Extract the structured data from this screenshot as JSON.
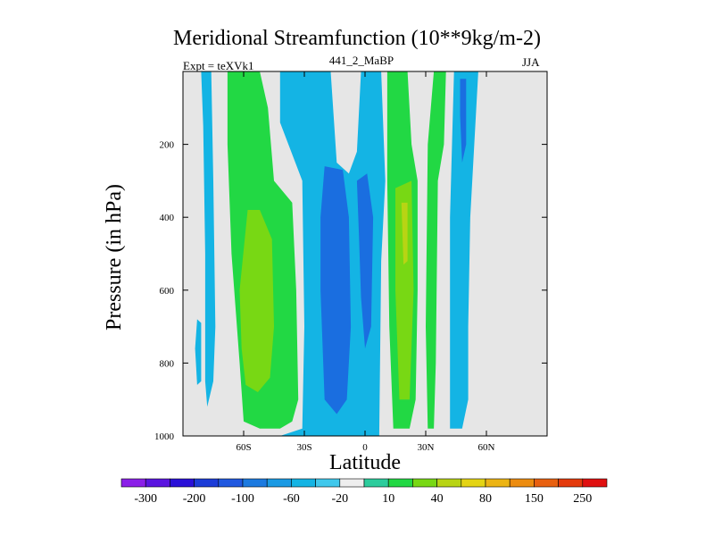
{
  "chart_data": {
    "type": "contourf",
    "title": "Meridional Streamfunction (10**9kg/m-2)",
    "left_label": "Expt = teXVk1",
    "center_label": "441_2_MaBP",
    "right_label": "JJA",
    "xlabel": "Latitude",
    "ylabel": "Pressure (in hPa)",
    "xlim": [
      -90,
      90
    ],
    "ylim": [
      1000,
      0
    ],
    "x_ticks": [
      {
        "value": -60,
        "label": "60S"
      },
      {
        "value": -30,
        "label": "30S"
      },
      {
        "value": 0,
        "label": "0"
      },
      {
        "value": 30,
        "label": "30N"
      },
      {
        "value": 60,
        "label": "60N"
      }
    ],
    "y_ticks": [
      {
        "value": 200,
        "label": "200"
      },
      {
        "value": 400,
        "label": "400"
      },
      {
        "value": 600,
        "label": "600"
      },
      {
        "value": 800,
        "label": "800"
      },
      {
        "value": 1000,
        "label": "1000"
      }
    ],
    "missing_color": "#e6e6e6",
    "colorbar": {
      "labels": [
        "-300",
        "-200",
        "-100",
        "-60",
        "-20",
        "10",
        "40",
        "80",
        "150",
        "250"
      ],
      "colors": [
        "#8b1fe8",
        "#5a14e0",
        "#2a10d8",
        "#1c3cd8",
        "#2058e0",
        "#1c7ae0",
        "#1a9ae4",
        "#14b4e4",
        "#40c8ec",
        "#eeeeee",
        "#2ccc9c",
        "#22d844",
        "#78d814",
        "#b8d414",
        "#e4d414",
        "#ecb414",
        "#ec8c10",
        "#e86010",
        "#e43a0c",
        "#e01010"
      ]
    },
    "regions": [
      {
        "level": "-20",
        "points": [
          [
            -81,
            0
          ],
          [
            -76,
            0
          ],
          [
            -75,
            300
          ],
          [
            -74,
            700
          ],
          [
            -75,
            850
          ],
          [
            -78,
            920
          ],
          [
            -79,
            850
          ],
          [
            -79,
            500
          ],
          [
            -80,
            150
          ]
        ]
      },
      {
        "level": "-20",
        "points": [
          [
            -83,
            680
          ],
          [
            -81,
            690
          ],
          [
            -81,
            850
          ],
          [
            -83,
            860
          ],
          [
            -84,
            760
          ]
        ]
      },
      {
        "level": "20",
        "points": [
          [
            -68,
            0
          ],
          [
            -52,
            0
          ],
          [
            -48,
            100
          ],
          [
            -45,
            300
          ],
          [
            -36,
            360
          ],
          [
            -34,
            600
          ],
          [
            -33,
            900
          ],
          [
            -36,
            960
          ],
          [
            -42,
            980
          ],
          [
            -52,
            980
          ],
          [
            -60,
            960
          ],
          [
            -62,
            800
          ],
          [
            -66,
            500
          ],
          [
            -68,
            200
          ]
        ]
      },
      {
        "level": "40",
        "points": [
          [
            -62,
            600
          ],
          [
            -58,
            380
          ],
          [
            -52,
            380
          ],
          [
            -46,
            460
          ],
          [
            -45,
            700
          ],
          [
            -47,
            840
          ],
          [
            -53,
            880
          ],
          [
            -59,
            860
          ],
          [
            -61,
            760
          ]
        ]
      },
      {
        "level": "-20",
        "points": [
          [
            -42,
            0
          ],
          [
            -17,
            0
          ],
          [
            -14,
            250
          ],
          [
            -8,
            280
          ],
          [
            -4,
            220
          ],
          [
            -2,
            0
          ],
          [
            8,
            0
          ],
          [
            10,
            300
          ],
          [
            8,
            520
          ],
          [
            7,
            1000
          ],
          [
            -42,
            1000
          ],
          [
            -31,
            980
          ],
          [
            -30,
            700
          ],
          [
            -31,
            300
          ],
          [
            -42,
            140
          ]
        ]
      },
      {
        "level": "-20",
        "points": [
          [
            44,
            0
          ],
          [
            56,
            0
          ],
          [
            54,
            200
          ],
          [
            52,
            400
          ],
          [
            51,
            700
          ],
          [
            51,
            900
          ],
          [
            48,
            980
          ],
          [
            42,
            980
          ],
          [
            42,
            400
          ]
        ]
      },
      {
        "level": "-60",
        "points": [
          [
            -20,
            260
          ],
          [
            -11,
            270
          ],
          [
            -8,
            400
          ],
          [
            -7,
            700
          ],
          [
            -9,
            900
          ],
          [
            -14,
            940
          ],
          [
            -20,
            900
          ],
          [
            -22,
            600
          ],
          [
            -22,
            400
          ]
        ]
      },
      {
        "level": "-60",
        "points": [
          [
            -4,
            300
          ],
          [
            1,
            280
          ],
          [
            4,
            400
          ],
          [
            3,
            700
          ],
          [
            0,
            760
          ],
          [
            -2,
            620
          ],
          [
            -3,
            450
          ]
        ]
      },
      {
        "level": "-60",
        "points": [
          [
            47,
            20
          ],
          [
            50,
            20
          ],
          [
            50,
            200
          ],
          [
            48,
            250
          ],
          [
            47,
            120
          ]
        ]
      },
      {
        "level": "20",
        "points": [
          [
            11,
            0
          ],
          [
            21,
            0
          ],
          [
            23,
            200
          ],
          [
            26,
            300
          ],
          [
            26,
            600
          ],
          [
            25,
            900
          ],
          [
            22,
            980
          ],
          [
            14,
            980
          ],
          [
            12,
            700
          ],
          [
            11,
            300
          ]
        ]
      },
      {
        "level": "40",
        "points": [
          [
            15,
            320
          ],
          [
            23,
            300
          ],
          [
            24,
            600
          ],
          [
            22,
            900
          ],
          [
            17,
            900
          ],
          [
            15,
            600
          ]
        ]
      },
      {
        "level": "80",
        "points": [
          [
            18,
            360
          ],
          [
            21,
            360
          ],
          [
            21,
            520
          ],
          [
            19,
            530
          ]
        ]
      },
      {
        "level": "20",
        "points": [
          [
            34,
            0
          ],
          [
            40,
            0
          ],
          [
            39,
            200
          ],
          [
            36,
            300
          ],
          [
            35,
            800
          ],
          [
            34,
            980
          ],
          [
            31,
            980
          ],
          [
            30,
            700
          ],
          [
            31,
            200
          ]
        ]
      }
    ]
  }
}
